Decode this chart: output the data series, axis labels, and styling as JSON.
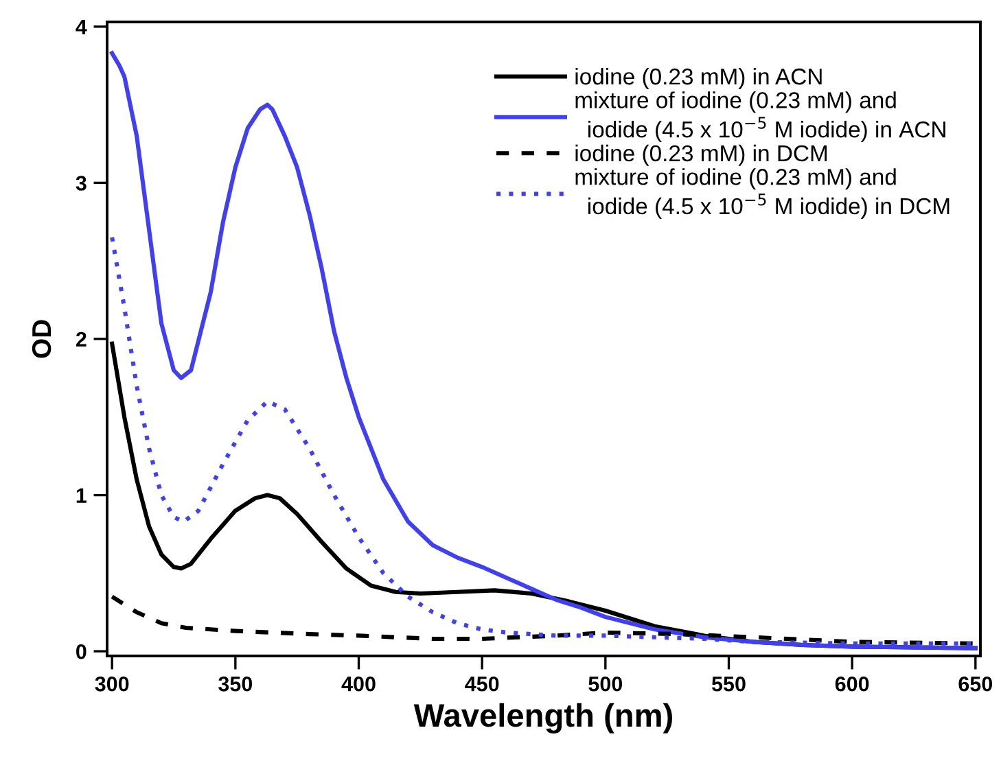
{
  "chart_data": {
    "type": "line",
    "xlabel": "Wavelength (nm)",
    "ylabel": "OD",
    "xlim": [
      298,
      652
    ],
    "ylim": [
      -0.03,
      4.03
    ],
    "xticks": [
      300,
      350,
      400,
      450,
      500,
      550,
      600,
      650
    ],
    "yticks": [
      0,
      1,
      2,
      3,
      4
    ],
    "grid": false,
    "legend": "top right",
    "marker": "none",
    "series": [
      {
        "name": "iodine (0.23 mM) in ACN",
        "color": "#000000",
        "line_style": "solid",
        "x": [
          300,
          305,
          310,
          315,
          320,
          325,
          328,
          332,
          340,
          350,
          358,
          363,
          368,
          375,
          385,
          395,
          405,
          415,
          425,
          440,
          455,
          470,
          485,
          500,
          520,
          540,
          560,
          580,
          600,
          650
        ],
        "values": [
          1.97,
          1.5,
          1.1,
          0.8,
          0.62,
          0.54,
          0.53,
          0.56,
          0.72,
          0.9,
          0.98,
          1.0,
          0.98,
          0.88,
          0.7,
          0.53,
          0.42,
          0.38,
          0.37,
          0.38,
          0.39,
          0.37,
          0.32,
          0.26,
          0.16,
          0.1,
          0.06,
          0.04,
          0.03,
          0.02
        ]
      },
      {
        "name": "mixture of iodine (0.23 mM) and\n  iodide (4.5 x 10$^{−5}$ M iodide) in ACN",
        "color": "#4040f0",
        "line_style": "solid",
        "x": [
          300,
          303,
          305,
          310,
          315,
          320,
          325,
          328,
          332,
          340,
          345,
          350,
          355,
          360,
          363,
          365,
          370,
          375,
          380,
          385,
          390,
          395,
          400,
          410,
          420,
          430,
          440,
          450,
          460,
          470,
          480,
          490,
          500,
          520,
          540,
          560,
          580,
          600,
          650
        ],
        "values": [
          3.83,
          3.75,
          3.68,
          3.3,
          2.7,
          2.1,
          1.8,
          1.75,
          1.8,
          2.3,
          2.75,
          3.1,
          3.35,
          3.47,
          3.5,
          3.47,
          3.3,
          3.1,
          2.8,
          2.45,
          2.05,
          1.75,
          1.5,
          1.1,
          0.83,
          0.68,
          0.6,
          0.54,
          0.47,
          0.4,
          0.33,
          0.28,
          0.22,
          0.14,
          0.09,
          0.06,
          0.04,
          0.03,
          0.02
        ]
      },
      {
        "name": "iodine (0.23 mM) in DCM",
        "color": "#000000",
        "line_style": "dashed",
        "x": [
          300,
          310,
          320,
          330,
          350,
          380,
          400,
          430,
          450,
          480,
          500,
          530,
          560,
          600,
          650
        ],
        "values": [
          0.35,
          0.25,
          0.18,
          0.15,
          0.13,
          0.11,
          0.1,
          0.08,
          0.08,
          0.1,
          0.12,
          0.11,
          0.09,
          0.06,
          0.05
        ]
      },
      {
        "name": "mixture of iodine (0.23 mM) and\n  iodide (4.5 x 10$^{−5}$ M iodide) in DCM",
        "color": "#4040f0",
        "line_style": "dotted",
        "x": [
          300,
          305,
          310,
          315,
          320,
          325,
          329,
          335,
          345,
          355,
          363,
          370,
          380,
          390,
          400,
          410,
          420,
          430,
          440,
          450,
          460,
          480,
          500,
          520,
          540,
          560,
          600,
          650
        ],
        "values": [
          2.65,
          2.2,
          1.7,
          1.3,
          1.0,
          0.86,
          0.83,
          0.9,
          1.2,
          1.48,
          1.6,
          1.55,
          1.3,
          1.0,
          0.73,
          0.5,
          0.35,
          0.25,
          0.18,
          0.14,
          0.12,
          0.1,
          0.1,
          0.09,
          0.08,
          0.06,
          0.05,
          0.05
        ]
      }
    ]
  }
}
